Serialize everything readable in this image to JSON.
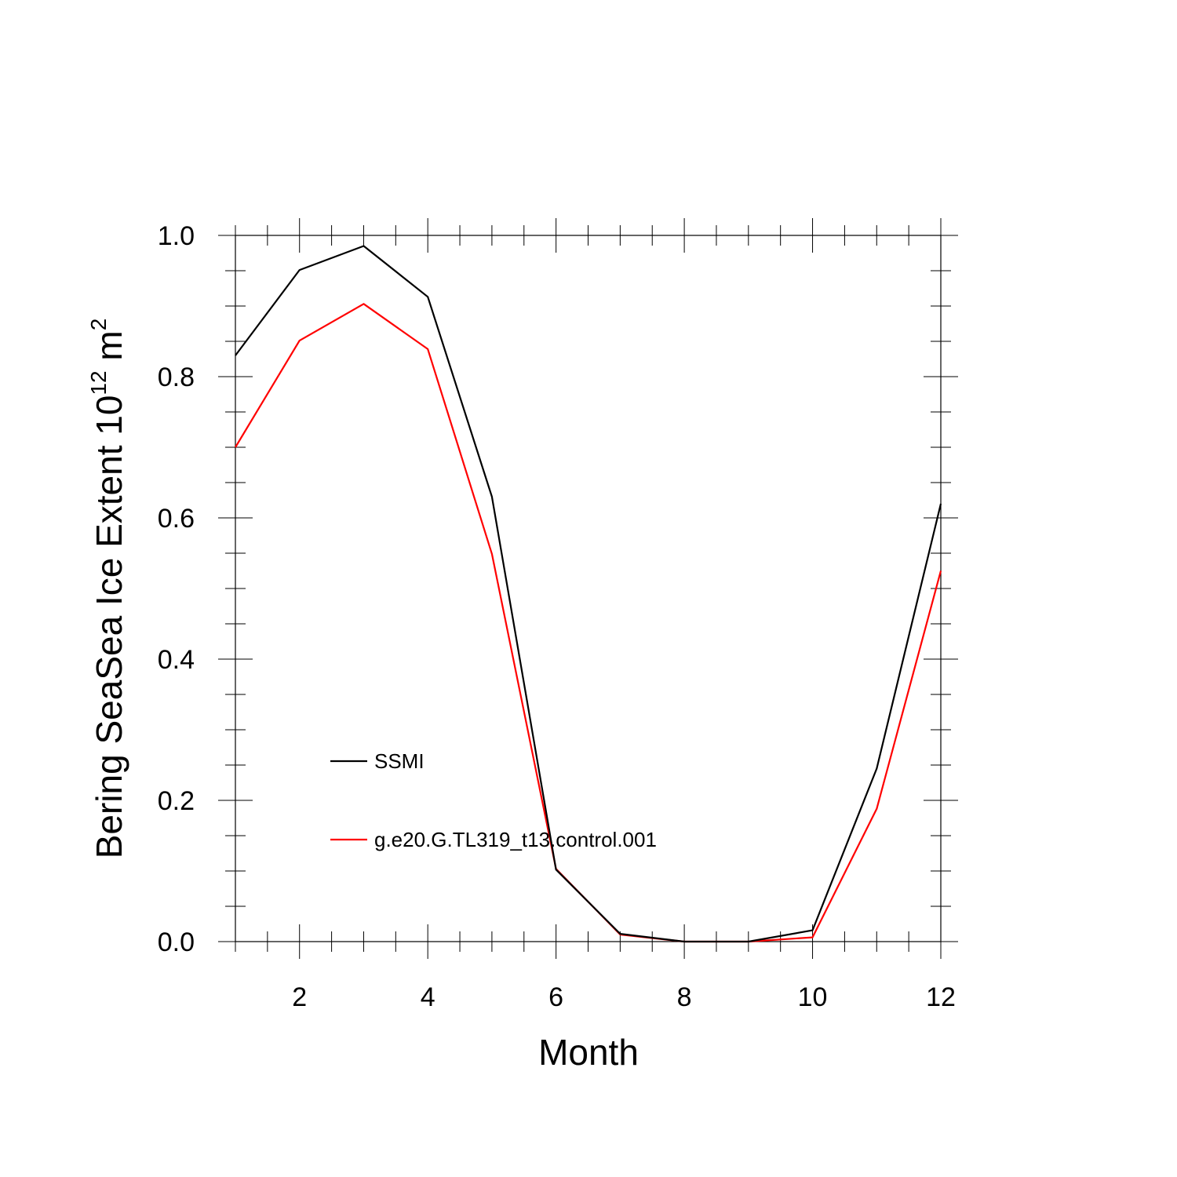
{
  "chart_data": {
    "type": "line",
    "title": "",
    "xlabel": "Month",
    "ylabel": {
      "main": "Bering SeaSea Ice Extent 10",
      "sup1": "12",
      "unit": " m",
      "sup2": "2"
    },
    "xlim": [
      1,
      12
    ],
    "ylim": [
      0,
      1
    ],
    "x_ticks": [
      2,
      4,
      6,
      8,
      10,
      12
    ],
    "y_ticks": [
      "0.0",
      "0.2",
      "0.4",
      "0.6",
      "0.8",
      "1.0"
    ],
    "grid": false,
    "legend_placement": "lower-left",
    "x": [
      1,
      2,
      3,
      4,
      5,
      6,
      7,
      8,
      9,
      10,
      11,
      12
    ],
    "series": [
      {
        "name": "SSMI",
        "color": "#000000",
        "values": [
          0.83,
          0.951,
          0.985,
          0.913,
          0.63,
          0.102,
          0.011,
          0.0,
          0.0,
          0.016,
          0.245,
          0.62
        ]
      },
      {
        "name": "g.e20.G.TL319_t13.control.001",
        "color": "#ff0000",
        "values": [
          0.7,
          0.851,
          0.903,
          0.839,
          0.549,
          0.103,
          0.01,
          0.0,
          0.0,
          0.006,
          0.188,
          0.525
        ]
      }
    ]
  }
}
